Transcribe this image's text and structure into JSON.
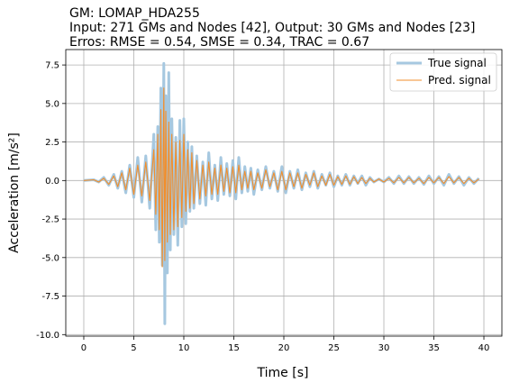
{
  "chart_data": {
    "type": "line",
    "title_lines": [
      "GM: LOMAP_HDA255",
      "Input: 271 GMs and Nodes [42], Output: 30 GMs and Nodes [23]",
      "Erros: RMSE = 0.54, SMSE = 0.34, TRAC = 0.67"
    ],
    "xlabel": "Time [s]",
    "ylabel": "Acceleration [m/s²]",
    "xlim": [
      -1.8,
      41.8
    ],
    "ylim": [
      -10.1,
      8.5
    ],
    "xticks": [
      0,
      5,
      10,
      15,
      20,
      25,
      30,
      35,
      40
    ],
    "yticks": [
      -10.0,
      -7.5,
      -5.0,
      -2.5,
      0.0,
      2.5,
      5.0,
      7.5
    ],
    "grid": true,
    "legend_position": "top-right",
    "series": [
      {
        "name": "True signal",
        "color": "#a6c8e0",
        "x": [
          0,
          1,
          1.5,
          2,
          2.5,
          3,
          3.4,
          3.8,
          4.2,
          4.6,
          5,
          5.4,
          5.8,
          6.2,
          6.6,
          7,
          7.2,
          7.4,
          7.55,
          7.7,
          7.85,
          8,
          8.1,
          8.2,
          8.35,
          8.5,
          8.65,
          8.8,
          9,
          9.2,
          9.4,
          9.6,
          9.8,
          10,
          10.2,
          10.4,
          10.6,
          10.8,
          11,
          11.3,
          11.6,
          11.9,
          12.2,
          12.5,
          12.8,
          13.1,
          13.4,
          13.7,
          14,
          14.3,
          14.6,
          14.9,
          15.2,
          15.5,
          15.8,
          16.1,
          16.4,
          16.7,
          17,
          17.4,
          17.8,
          18.2,
          18.6,
          19,
          19.4,
          19.8,
          20.2,
          20.6,
          21,
          21.4,
          21.8,
          22.2,
          22.6,
          23,
          23.4,
          23.8,
          24.2,
          24.6,
          25,
          25.4,
          25.8,
          26.2,
          26.6,
          27,
          27.4,
          27.8,
          28.2,
          28.6,
          29,
          29.5,
          30,
          30.5,
          31,
          31.5,
          32,
          32.5,
          33,
          33.5,
          34,
          34.5,
          35,
          35.5,
          36,
          36.5,
          37,
          37.5,
          38,
          38.5,
          39,
          39.5
        ],
        "y": [
          0,
          0.05,
          -0.1,
          0.2,
          -0.3,
          0.4,
          -0.5,
          0.6,
          -0.8,
          1.0,
          -1.1,
          1.5,
          -1.4,
          1.6,
          -1.8,
          3.0,
          -3.2,
          3.5,
          -4.0,
          6.0,
          -5.5,
          7.6,
          -9.3,
          5.5,
          -6.0,
          7.0,
          -4.5,
          4.0,
          -3.5,
          2.8,
          -4.2,
          3.9,
          -3.0,
          4.0,
          -2.8,
          2.5,
          -2.0,
          2.2,
          -1.8,
          1.6,
          -1.5,
          1.2,
          -1.6,
          1.8,
          -1.2,
          1.0,
          -1.3,
          1.5,
          -0.9,
          1.1,
          -1.0,
          1.3,
          -1.2,
          1.5,
          -0.8,
          0.9,
          -0.7,
          0.8,
          -0.9,
          0.7,
          -0.6,
          0.9,
          -0.5,
          0.6,
          -0.7,
          0.9,
          -0.8,
          0.6,
          -0.5,
          0.7,
          -0.6,
          0.5,
          -0.4,
          0.6,
          -0.5,
          0.4,
          -0.3,
          0.5,
          -0.4,
          0.3,
          -0.3,
          0.4,
          -0.3,
          0.3,
          -0.2,
          0.3,
          -0.3,
          0.2,
          -0.1,
          0.1,
          -0.1,
          0.2,
          -0.2,
          0.3,
          -0.2,
          0.25,
          -0.2,
          0.2,
          -0.25,
          0.3,
          -0.2,
          0.25,
          -0.3,
          0.4,
          -0.2,
          0.25,
          -0.3,
          0.2,
          -0.2,
          0.15
        ]
      },
      {
        "name": "Pred. signal",
        "color": "#f28e2b",
        "x": [
          0,
          1,
          1.5,
          2,
          2.5,
          3,
          3.4,
          3.8,
          4.2,
          4.6,
          5,
          5.4,
          5.8,
          6.2,
          6.6,
          7,
          7.2,
          7.4,
          7.55,
          7.7,
          7.85,
          8,
          8.1,
          8.2,
          8.35,
          8.5,
          8.65,
          8.8,
          9,
          9.2,
          9.4,
          9.6,
          9.8,
          10,
          10.2,
          10.4,
          10.6,
          10.8,
          11,
          11.3,
          11.6,
          11.9,
          12.2,
          12.5,
          12.8,
          13.1,
          13.4,
          13.7,
          14,
          14.3,
          14.6,
          14.9,
          15.2,
          15.5,
          15.8,
          16.1,
          16.4,
          16.7,
          17,
          17.4,
          17.8,
          18.2,
          18.6,
          19,
          19.4,
          19.8,
          20.2,
          20.6,
          21,
          21.4,
          21.8,
          22.2,
          22.6,
          23,
          23.4,
          23.8,
          24.2,
          24.6,
          25,
          25.4,
          25.8,
          26.2,
          26.6,
          27,
          27.4,
          27.8,
          28.2,
          28.6,
          29,
          29.5,
          30,
          30.5,
          31,
          31.5,
          32,
          32.5,
          33,
          33.5,
          34,
          34.5,
          35,
          35.5,
          36,
          36.5,
          37,
          37.5,
          38,
          38.5,
          39,
          39.5
        ],
        "y": [
          0,
          0.05,
          -0.1,
          0.15,
          -0.25,
          0.3,
          -0.4,
          0.5,
          -0.6,
          0.8,
          -0.9,
          1.0,
          -1.0,
          1.2,
          -1.3,
          2.0,
          -2.2,
          3.0,
          -3.2,
          4.6,
          -5.6,
          6.0,
          -5.2,
          4.5,
          -4.0,
          3.8,
          -3.5,
          3.0,
          -3.2,
          2.5,
          -3.0,
          2.6,
          -2.4,
          3.0,
          -2.0,
          2.0,
          -1.8,
          1.8,
          -1.5,
          1.3,
          -1.2,
          1.0,
          -1.0,
          1.2,
          -0.9,
          0.8,
          -0.9,
          1.0,
          -0.7,
          0.8,
          -0.8,
          0.9,
          -0.8,
          1.0,
          -0.6,
          0.6,
          -0.5,
          0.6,
          -0.6,
          0.5,
          -0.5,
          0.7,
          -0.4,
          0.5,
          -0.6,
          0.6,
          -0.6,
          0.5,
          -0.4,
          0.5,
          -0.5,
          0.4,
          -0.3,
          0.5,
          -0.4,
          0.3,
          -0.3,
          0.4,
          -0.3,
          0.25,
          -0.25,
          0.3,
          -0.25,
          0.25,
          -0.2,
          0.2,
          -0.2,
          0.15,
          -0.1,
          0.1,
          -0.1,
          0.15,
          -0.15,
          0.2,
          -0.15,
          0.2,
          -0.15,
          0.15,
          -0.2,
          0.2,
          -0.15,
          0.2,
          -0.2,
          0.25,
          -0.15,
          0.2,
          -0.2,
          0.15,
          -0.15,
          0.1
        ]
      }
    ]
  }
}
